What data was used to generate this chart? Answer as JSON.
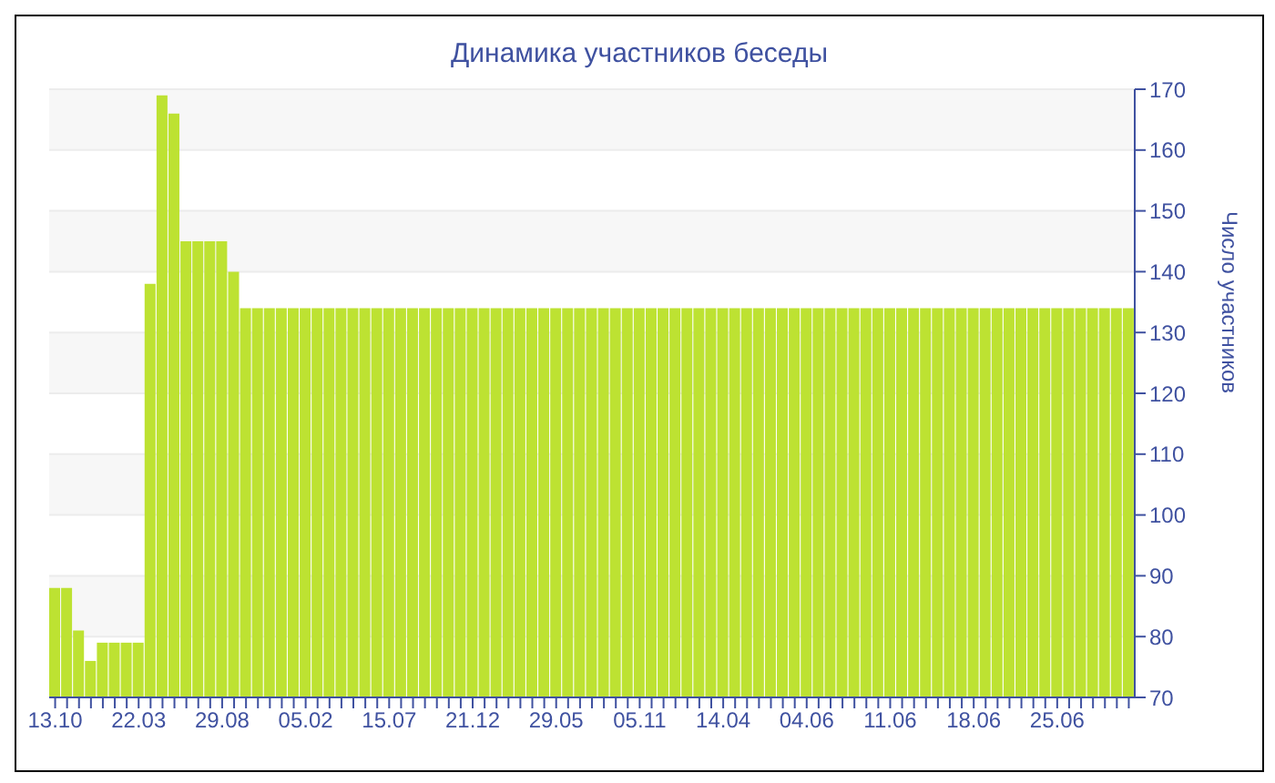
{
  "chart_data": {
    "type": "bar",
    "title": "Динамика участников беседы",
    "ylabel": "Число участников",
    "categories": [
      "13.10",
      null,
      null,
      null,
      null,
      null,
      null,
      "22.03",
      null,
      null,
      null,
      null,
      null,
      null,
      "29.08",
      null,
      null,
      null,
      null,
      null,
      null,
      "05.02",
      null,
      null,
      null,
      null,
      null,
      null,
      "15.07",
      null,
      null,
      null,
      null,
      null,
      null,
      "21.12",
      null,
      null,
      null,
      null,
      null,
      null,
      "29.05",
      null,
      null,
      null,
      null,
      null,
      null,
      "05.11",
      null,
      null,
      null,
      null,
      null,
      null,
      "14.04",
      null,
      null,
      null,
      null,
      null,
      null,
      "04.06",
      null,
      null,
      null,
      null,
      null,
      null,
      "11.06",
      null,
      null,
      null,
      null,
      null,
      null,
      "18.06",
      null,
      null,
      null,
      null,
      null,
      null,
      "25.06",
      null,
      null,
      null,
      null,
      null,
      null
    ],
    "values": [
      88,
      88,
      81,
      76,
      79,
      79,
      79,
      79,
      138,
      169,
      166,
      145,
      145,
      145,
      145,
      140,
      134,
      134,
      134,
      134,
      134,
      134,
      134,
      134,
      134,
      134,
      134,
      134,
      134,
      134,
      134,
      134,
      134,
      134,
      134,
      134,
      134,
      134,
      134,
      134,
      134,
      134,
      134,
      134,
      134,
      134,
      134,
      134,
      134,
      134,
      134,
      134,
      134,
      134,
      134,
      134,
      134,
      134,
      134,
      134,
      134,
      134,
      134,
      134,
      134,
      134,
      134,
      134,
      134,
      134,
      134,
      134,
      134,
      134,
      134,
      134,
      134,
      134,
      134,
      134,
      134,
      134,
      134,
      134,
      134,
      134,
      134,
      134,
      134,
      134,
      134
    ],
    "color": "#bde232",
    "ylim": [
      70,
      170
    ],
    "yticks": [
      70,
      80,
      90,
      100,
      110,
      120,
      130,
      140,
      150,
      160,
      170
    ],
    "grid": "y"
  }
}
